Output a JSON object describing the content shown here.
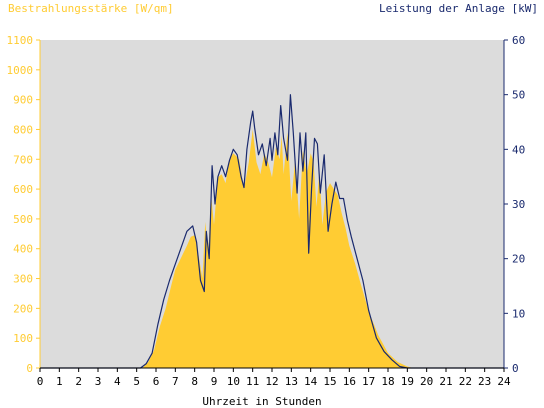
{
  "chart_data": {
    "type": "area",
    "title_left": "Bestrahlungsstärke [W/qm]",
    "title_right": "Leistung der Anlage [kW]",
    "xlabel": "Uhrzeit in Stunden",
    "xlim": [
      0,
      24
    ],
    "x_ticks": [
      "0",
      "1",
      "2",
      "3",
      "4",
      "5",
      "6",
      "7",
      "8",
      "9",
      "10",
      "11",
      "12",
      "13",
      "14",
      "15",
      "16",
      "17",
      "18",
      "19",
      "20",
      "21",
      "22",
      "23",
      "24"
    ],
    "y_left": {
      "lim": [
        0,
        1100
      ],
      "ticks": [
        "0",
        "100",
        "200",
        "300",
        "400",
        "500",
        "600",
        "700",
        "800",
        "900",
        "1000",
        "1100"
      ]
    },
    "y_right": {
      "lim": [
        0,
        60
      ],
      "ticks": [
        "0",
        "10",
        "20",
        "30",
        "40",
        "50",
        "60"
      ]
    },
    "grid": false,
    "series": [
      {
        "name": "Bestrahlungsstärke",
        "axis": "left",
        "render": "filled-area",
        "x": [
          0,
          5.3,
          5.6,
          5.9,
          6.2,
          6.5,
          6.8,
          7.0,
          7.3,
          7.6,
          7.8,
          8.0,
          8.2,
          8.4,
          8.55,
          8.7,
          8.85,
          9.0,
          9.2,
          9.4,
          9.6,
          9.8,
          10.0,
          10.3,
          10.55,
          10.8,
          11.0,
          11.2,
          11.4,
          11.6,
          11.8,
          12.0,
          12.2,
          12.4,
          12.5,
          12.6,
          12.8,
          13.0,
          13.2,
          13.4,
          13.6,
          13.8,
          14.0,
          14.15,
          14.3,
          14.45,
          14.6,
          14.8,
          15.0,
          15.2,
          15.4,
          15.6,
          15.8,
          16.0,
          16.3,
          16.6,
          17.0,
          17.5,
          18.0,
          18.5,
          19.0,
          19.3,
          19.5,
          20,
          24
        ],
        "values": [
          0,
          0,
          20,
          60,
          140,
          200,
          280,
          330,
          370,
          410,
          440,
          445,
          380,
          300,
          490,
          380,
          580,
          480,
          640,
          650,
          620,
          700,
          720,
          700,
          600,
          690,
          800,
          690,
          650,
          720,
          690,
          640,
          740,
          700,
          780,
          650,
          790,
          560,
          700,
          500,
          730,
          650,
          720,
          690,
          540,
          660,
          480,
          590,
          620,
          600,
          580,
          520,
          470,
          410,
          350,
          280,
          190,
          110,
          50,
          20,
          5,
          0,
          0,
          0,
          0
        ]
      },
      {
        "name": "Leistung der Anlage",
        "axis": "right",
        "render": "line",
        "x": [
          0,
          5.2,
          5.5,
          5.8,
          6.1,
          6.4,
          6.7,
          7.0,
          7.3,
          7.6,
          7.9,
          8.1,
          8.3,
          8.5,
          8.6,
          8.75,
          8.9,
          9.05,
          9.2,
          9.4,
          9.6,
          9.8,
          10.0,
          10.2,
          10.4,
          10.55,
          10.7,
          10.9,
          11.0,
          11.1,
          11.3,
          11.5,
          11.7,
          11.9,
          12.0,
          12.15,
          12.3,
          12.45,
          12.6,
          12.8,
          12.95,
          13.1,
          13.3,
          13.45,
          13.6,
          13.75,
          13.9,
          14.05,
          14.2,
          14.35,
          14.5,
          14.7,
          14.9,
          15.1,
          15.3,
          15.5,
          15.7,
          15.9,
          16.1,
          16.4,
          16.7,
          17.0,
          17.4,
          17.8,
          18.2,
          18.6,
          19.0,
          19.4,
          19.7,
          20,
          24
        ],
        "values": [
          0,
          0,
          0.8,
          2.7,
          8,
          12.5,
          16,
          19,
          22,
          25,
          26,
          23,
          16,
          14,
          25,
          20,
          37,
          30,
          35,
          37,
          35,
          38,
          40,
          39,
          35,
          33,
          40,
          45,
          47,
          44,
          39,
          41,
          37,
          42,
          38,
          43,
          39,
          48,
          42,
          38,
          50,
          43,
          32,
          43,
          36,
          43,
          21,
          33,
          42,
          41,
          32,
          39,
          25,
          30,
          34,
          31,
          31,
          27,
          24,
          20,
          16,
          10.5,
          5.5,
          3,
          1.5,
          0.3,
          0,
          0,
          0,
          0,
          0
        ]
      }
    ]
  },
  "colors": {
    "plot_background": "#dcdcdc",
    "area_fill": "#ffcc33",
    "line": "#1a2a6e",
    "left_axis_text": "#ffcc33",
    "right_axis_text": "#1a2a6e",
    "bottom_axis_text": "#000000"
  }
}
